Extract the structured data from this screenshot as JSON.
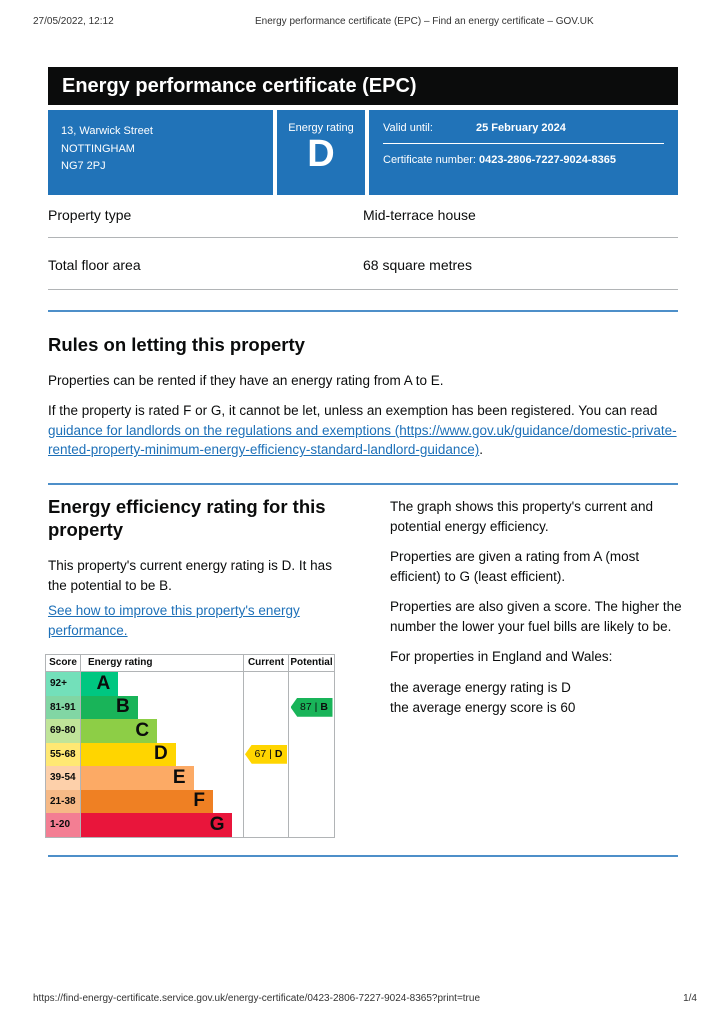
{
  "print_header": {
    "datetime": "27/05/2022, 12:12",
    "title": "Energy performance certificate (EPC) – Find an energy certificate – GOV.UK"
  },
  "banner": {
    "title": "Energy performance certificate (EPC)"
  },
  "summary_box": {
    "address_lines": [
      "13, Warwick Street",
      "NOTTINGHAM",
      "NG7 2PJ"
    ],
    "rating_label": "Energy rating",
    "rating_value": "D",
    "valid_until_label": "Valid until:",
    "valid_until_value": "25 February 2024",
    "certificate_number_label": "Certificate number:",
    "certificate_number_value": "0423-2806-7227-9024-8365",
    "box_color": "#2173b8"
  },
  "property_facts": {
    "rows": [
      {
        "label": "Property type",
        "value": "Mid-terrace house"
      },
      {
        "label": "Total floor area",
        "value": "68 square metres"
      }
    ]
  },
  "rules_section": {
    "heading": "Rules on letting this property",
    "para1": "Properties can be rented if they have an energy rating from A to E.",
    "para2_prefix": "If the property is rated F or G, it cannot be let, unless an exemption has been registered. You can read ",
    "para2_link": "guidance for landlords on the regulations and exemptions (https://www.gov.uk/guidance/domestic-private-rented-property-minimum-energy-efficiency-standard-landlord-guidance)",
    "para2_suffix": "."
  },
  "rating_section": {
    "heading": "Energy efficiency rating for this property",
    "para1": "This property's current energy rating is D. It has the potential to be B.",
    "link": "See how to improve this property's energy performance.",
    "right_paras": [
      "The graph shows this property's current and potential energy efficiency.",
      "Properties are given a rating from A (most efficient) to G (least efficient).",
      "Properties are also given a score. The higher the number the lower your fuel bills are likely to be.",
      "For properties in England and Wales:"
    ],
    "averages": [
      "the average energy rating is D",
      "the average energy score is 60"
    ]
  },
  "chart_data": {
    "type": "bar",
    "title": "Energy efficiency rating graph",
    "columns": {
      "score": "Score",
      "rating": "Energy rating",
      "current": "Current",
      "potential": "Potential"
    },
    "bands": [
      {
        "letter": "A",
        "score_range": "92+",
        "color": "#00c781",
        "tint": "#73e0ba",
        "width_pct": 23
      },
      {
        "letter": "B",
        "score_range": "81-91",
        "color": "#19b459",
        "tint": "#81d6a4",
        "width_pct": 35
      },
      {
        "letter": "C",
        "score_range": "69-80",
        "color": "#8dce46",
        "tint": "#c0e499",
        "width_pct": 47
      },
      {
        "letter": "D",
        "score_range": "55-68",
        "color": "#ffd500",
        "tint": "#ffe873",
        "width_pct": 58.5
      },
      {
        "letter": "E",
        "score_range": "39-54",
        "color": "#fcaa65",
        "tint": "#fdd0aa",
        "width_pct": 69.5
      },
      {
        "letter": "F",
        "score_range": "21-38",
        "color": "#ef8023",
        "tint": "#f6b986",
        "width_pct": 81.5
      },
      {
        "letter": "G",
        "score_range": "1-20",
        "color": "#e9153b",
        "tint": "#f37e93",
        "width_pct": 93.5
      }
    ],
    "marker_divider": "|",
    "current": {
      "score": "67",
      "band": "D",
      "color": "#ffd500",
      "band_index": 3
    },
    "potential": {
      "score": "87",
      "band": "B",
      "color": "#19b459",
      "band_index": 1
    }
  },
  "print_footer": {
    "url": "https://find-energy-certificate.service.gov.uk/energy-certificate/0423-2806-7227-9024-8365?print=true",
    "page": "1/4"
  }
}
